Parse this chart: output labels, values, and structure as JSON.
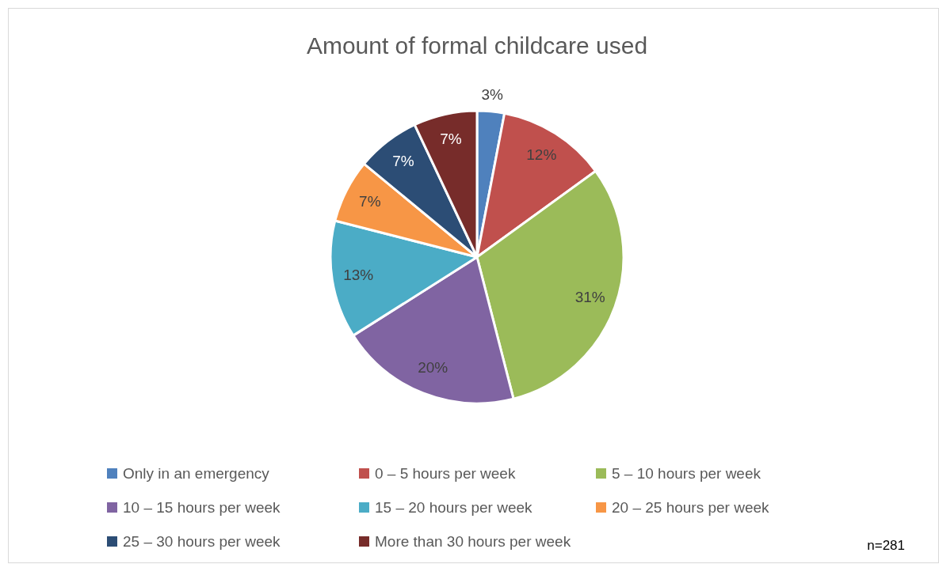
{
  "chart_data": {
    "type": "pie",
    "title": "Amount of formal childcare used",
    "categories": [
      "Only in an emergency",
      "0 – 5 hours per week",
      "5 – 10 hours per week",
      "10 – 15 hours per week",
      "15 – 20 hours per week",
      "20 – 25 hours per week",
      "25 – 30 hours per week",
      "More than 30 hours per week"
    ],
    "values": [
      3,
      12,
      31,
      20,
      13,
      7,
      7,
      7
    ],
    "colors": [
      "#4f81bd",
      "#c0504d",
      "#9bbb59",
      "#8064a2",
      "#4bacc6",
      "#f79646",
      "#2c4d75",
      "#772c2a"
    ],
    "value_labels": [
      "3%",
      "12%",
      "31%",
      "20%",
      "13%",
      "7%",
      "7%",
      "7%"
    ],
    "legend": "bottom",
    "annotations": [
      "n=281"
    ]
  }
}
